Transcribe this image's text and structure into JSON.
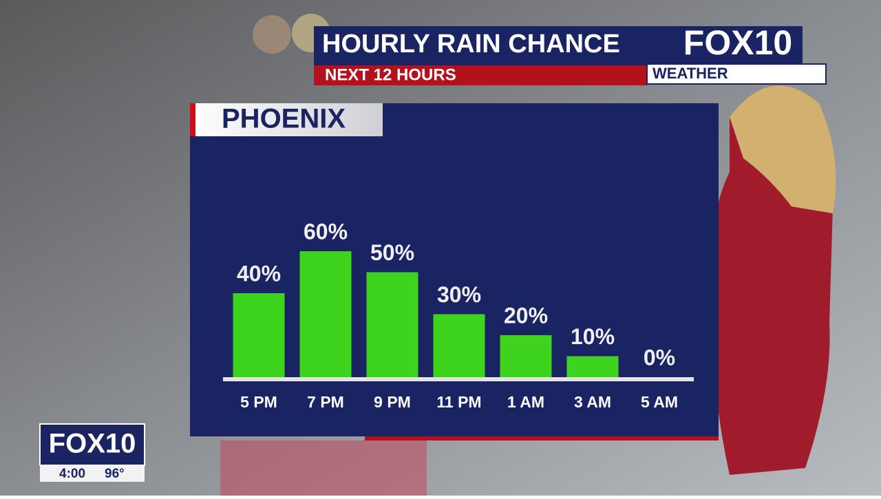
{
  "header": {
    "title": "HOURLY RAIN CHANCE",
    "subtitle": "NEXT 12 HOURS",
    "logo": "FOX10",
    "logo_sub": "WEATHER"
  },
  "chart_data": {
    "type": "bar",
    "title": "PHOENIX",
    "categories": [
      "5 PM",
      "7 PM",
      "9 PM",
      "11 PM",
      "1 AM",
      "3 AM",
      "5 AM"
    ],
    "values": [
      40,
      60,
      50,
      30,
      20,
      10,
      0
    ],
    "value_labels": [
      "40%",
      "60%",
      "50%",
      "30%",
      "20%",
      "10%",
      "0%"
    ],
    "color": "#3ed41e",
    "ylim": [
      0,
      100
    ]
  },
  "bug": {
    "logo": "FOX10",
    "time": "4:00",
    "temperature": "96°"
  }
}
